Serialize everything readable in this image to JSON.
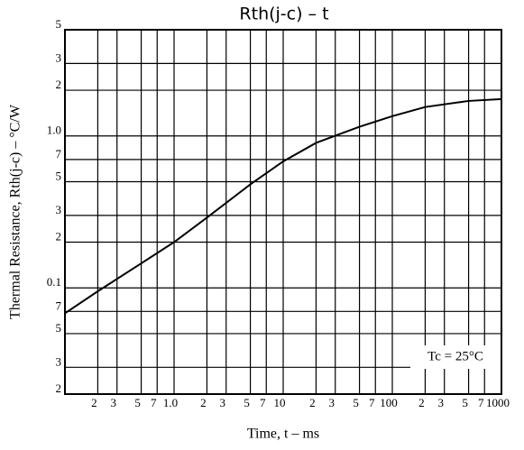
{
  "chart_data": {
    "type": "line",
    "title": "Rth(j-c)  –  t",
    "xlabel": "Time, t – ms",
    "ylabel": "Thermal Resistance, Rth(j-c) – °C/W",
    "annotation": "Tc = 25°C",
    "log_x": true,
    "log_y": true,
    "grid": true,
    "xlim": [
      0.1,
      1000
    ],
    "ylim": [
      0.02,
      5
    ],
    "xticks": [
      {
        "value": 0.2,
        "label": "2"
      },
      {
        "value": 0.3,
        "label": "3"
      },
      {
        "value": 0.5,
        "label": "5"
      },
      {
        "value": 0.7,
        "label": "7"
      },
      {
        "value": 1,
        "label": "1.0"
      },
      2,
      3,
      5,
      7,
      10,
      {
        "value": 20,
        "label": "2"
      },
      {
        "value": 30,
        "label": "3"
      },
      {
        "value": 50,
        "label": "5"
      },
      {
        "value": 70,
        "label": "7"
      },
      100,
      {
        "value": 200,
        "label": "2"
      },
      {
        "value": 300,
        "label": "3"
      },
      {
        "value": 500,
        "label": "5"
      },
      {
        "value": 700,
        "label": "7"
      },
      1000
    ],
    "yticks": [
      {
        "value": 0.02,
        "label": "2"
      },
      {
        "value": 0.03,
        "label": "3"
      },
      {
        "value": 0.05,
        "label": "5"
      },
      {
        "value": 0.07,
        "label": "7"
      },
      0.1,
      {
        "value": 0.2,
        "label": "2"
      },
      {
        "value": 0.3,
        "label": "3"
      },
      {
        "value": 0.5,
        "label": "5"
      },
      {
        "value": 0.7,
        "label": "7"
      },
      {
        "value": 1,
        "label": "1.0"
      },
      2,
      3,
      5
    ],
    "x": [
      0.1,
      0.2,
      0.5,
      1,
      2,
      5,
      10,
      20,
      50,
      100,
      200,
      500,
      1000
    ],
    "series": [
      {
        "name": "Rth(j-c)",
        "color": "#000000",
        "values": [
          0.068,
          0.095,
          0.145,
          0.2,
          0.29,
          0.48,
          0.68,
          0.9,
          1.15,
          1.35,
          1.55,
          1.7,
          1.75
        ]
      }
    ]
  }
}
